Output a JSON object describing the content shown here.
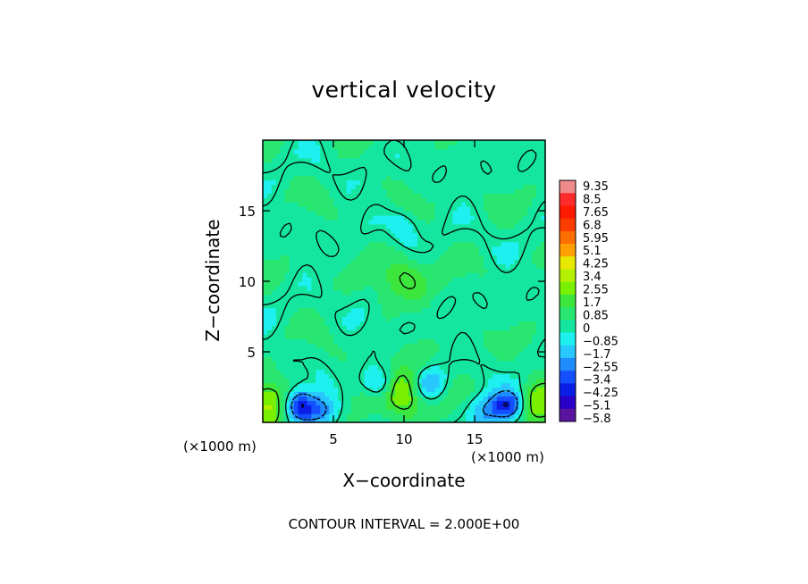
{
  "chart_data": {
    "type": "heatmap",
    "title": "vertical velocity",
    "xlabel": "X−coordinate",
    "ylabel": "Z−coordinate",
    "x_unit_label": "(×1000 m)",
    "z_unit_label": "(×1000 m)",
    "footer": "CONTOUR INTERVAL = 2.000E+00",
    "xlim": [
      0,
      20
    ],
    "ylim": [
      0,
      20
    ],
    "x_ticks": [
      "5",
      "10",
      "15"
    ],
    "y_ticks": [
      "5",
      "10",
      "15"
    ],
    "colorbar": {
      "min": -5.8,
      "max": 9.35,
      "labels": [
        "9.35",
        "8.5",
        "7.65",
        "6.8",
        "5.95",
        "5.1",
        "4.25",
        "3.4",
        "2.55",
        "1.7",
        "0.85",
        "0",
        "−0.85",
        "−1.7",
        "−2.55",
        "−3.4",
        "−4.25",
        "−5.1",
        "−5.8"
      ],
      "colors": [
        "#f08a8a",
        "#ff2a2a",
        "#ff1a00",
        "#ff3c00",
        "#ff6e00",
        "#ffa000",
        "#e8e800",
        "#b4f000",
        "#78f000",
        "#3ce63c",
        "#28e670",
        "#14e6a0",
        "#1ef0f0",
        "#28c8ff",
        "#1e8cff",
        "#1450ff",
        "#0a1ee6",
        "#2800c8",
        "#5a14a0"
      ]
    },
    "features": [
      {
        "type": "updraft",
        "x": 10,
        "z": 2.5,
        "value": 3.5
      },
      {
        "type": "updraft",
        "x": 10,
        "z": 10,
        "value": 2.0
      },
      {
        "type": "updraft",
        "x": 0.6,
        "z": 1.2,
        "value": 2.5
      },
      {
        "type": "updraft",
        "x": 19.4,
        "z": 1.2,
        "value": 2.5
      },
      {
        "type": "downdraft",
        "x": 2.5,
        "z": 1.2,
        "value": -4.5
      },
      {
        "type": "downdraft",
        "x": 17.5,
        "z": 1.2,
        "value": -4.5
      },
      {
        "type": "downdraft",
        "x": 4.2,
        "z": 0.9,
        "value": -2.5
      },
      {
        "type": "downdraft",
        "x": 15.8,
        "z": 0.9,
        "value": -2.5
      },
      {
        "type": "downdraft",
        "x": 8.3,
        "z": 2.8,
        "value": -3.0
      },
      {
        "type": "downdraft",
        "x": 11.7,
        "z": 2.8,
        "value": -3.0
      },
      {
        "type": "downdraft",
        "x": 10,
        "z": 6.5,
        "value": -1.2
      },
      {
        "type": "downdraft",
        "x": 10,
        "z": 14,
        "value": -1.0
      }
    ]
  }
}
